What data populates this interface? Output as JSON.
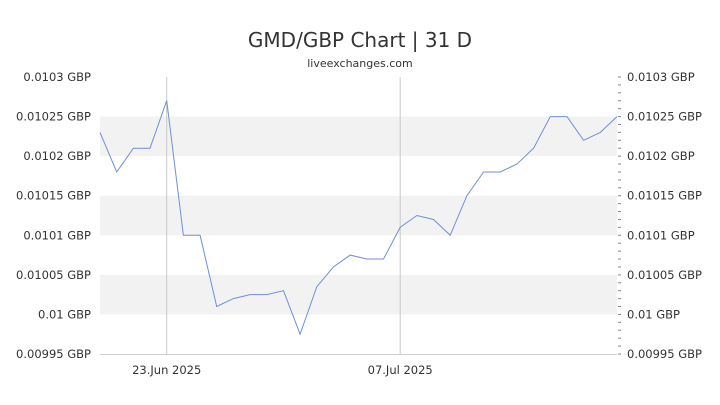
{
  "chart_data": {
    "type": "line",
    "title": "GMD/GBP Chart | 31 D",
    "subtitle": "liveexchanges.com",
    "xlabel": "",
    "ylabel": "",
    "ylim": [
      0.00995,
      0.0103
    ],
    "y_ticks": [
      {
        "value": 0.0103,
        "label": "0.0103 GBP"
      },
      {
        "value": 0.01025,
        "label": "0.01025 GBP"
      },
      {
        "value": 0.0102,
        "label": "0.0102 GBP"
      },
      {
        "value": 0.01015,
        "label": "0.01015 GBP"
      },
      {
        "value": 0.0101,
        "label": "0.0101 GBP"
      },
      {
        "value": 0.01005,
        "label": "0.01005 GBP"
      },
      {
        "value": 0.01,
        "label": "0.01 GBP"
      },
      {
        "value": 0.00995,
        "label": "0.00995 GBP"
      }
    ],
    "x_ticks": [
      {
        "index": 4,
        "label": "23.Jun 2025"
      },
      {
        "index": 18,
        "label": "07.Jul 2025"
      }
    ],
    "grid": "alternating horizontal bands",
    "line_color": "#6f8fd8",
    "series": [
      {
        "values": [
          0.01023,
          0.01018,
          0.01021,
          0.01021,
          0.01027,
          0.0101,
          0.0101,
          0.01001,
          0.01002,
          0.010025,
          0.010025,
          0.01003,
          0.009975,
          0.010035,
          0.01006,
          0.010075,
          0.01007,
          0.01007,
          0.01011,
          0.010125,
          0.01012,
          0.0101,
          0.01015,
          0.01018,
          0.01018,
          0.01019,
          0.01021,
          0.01025,
          0.01025,
          0.01022,
          0.01023,
          0.01025
        ]
      }
    ]
  }
}
